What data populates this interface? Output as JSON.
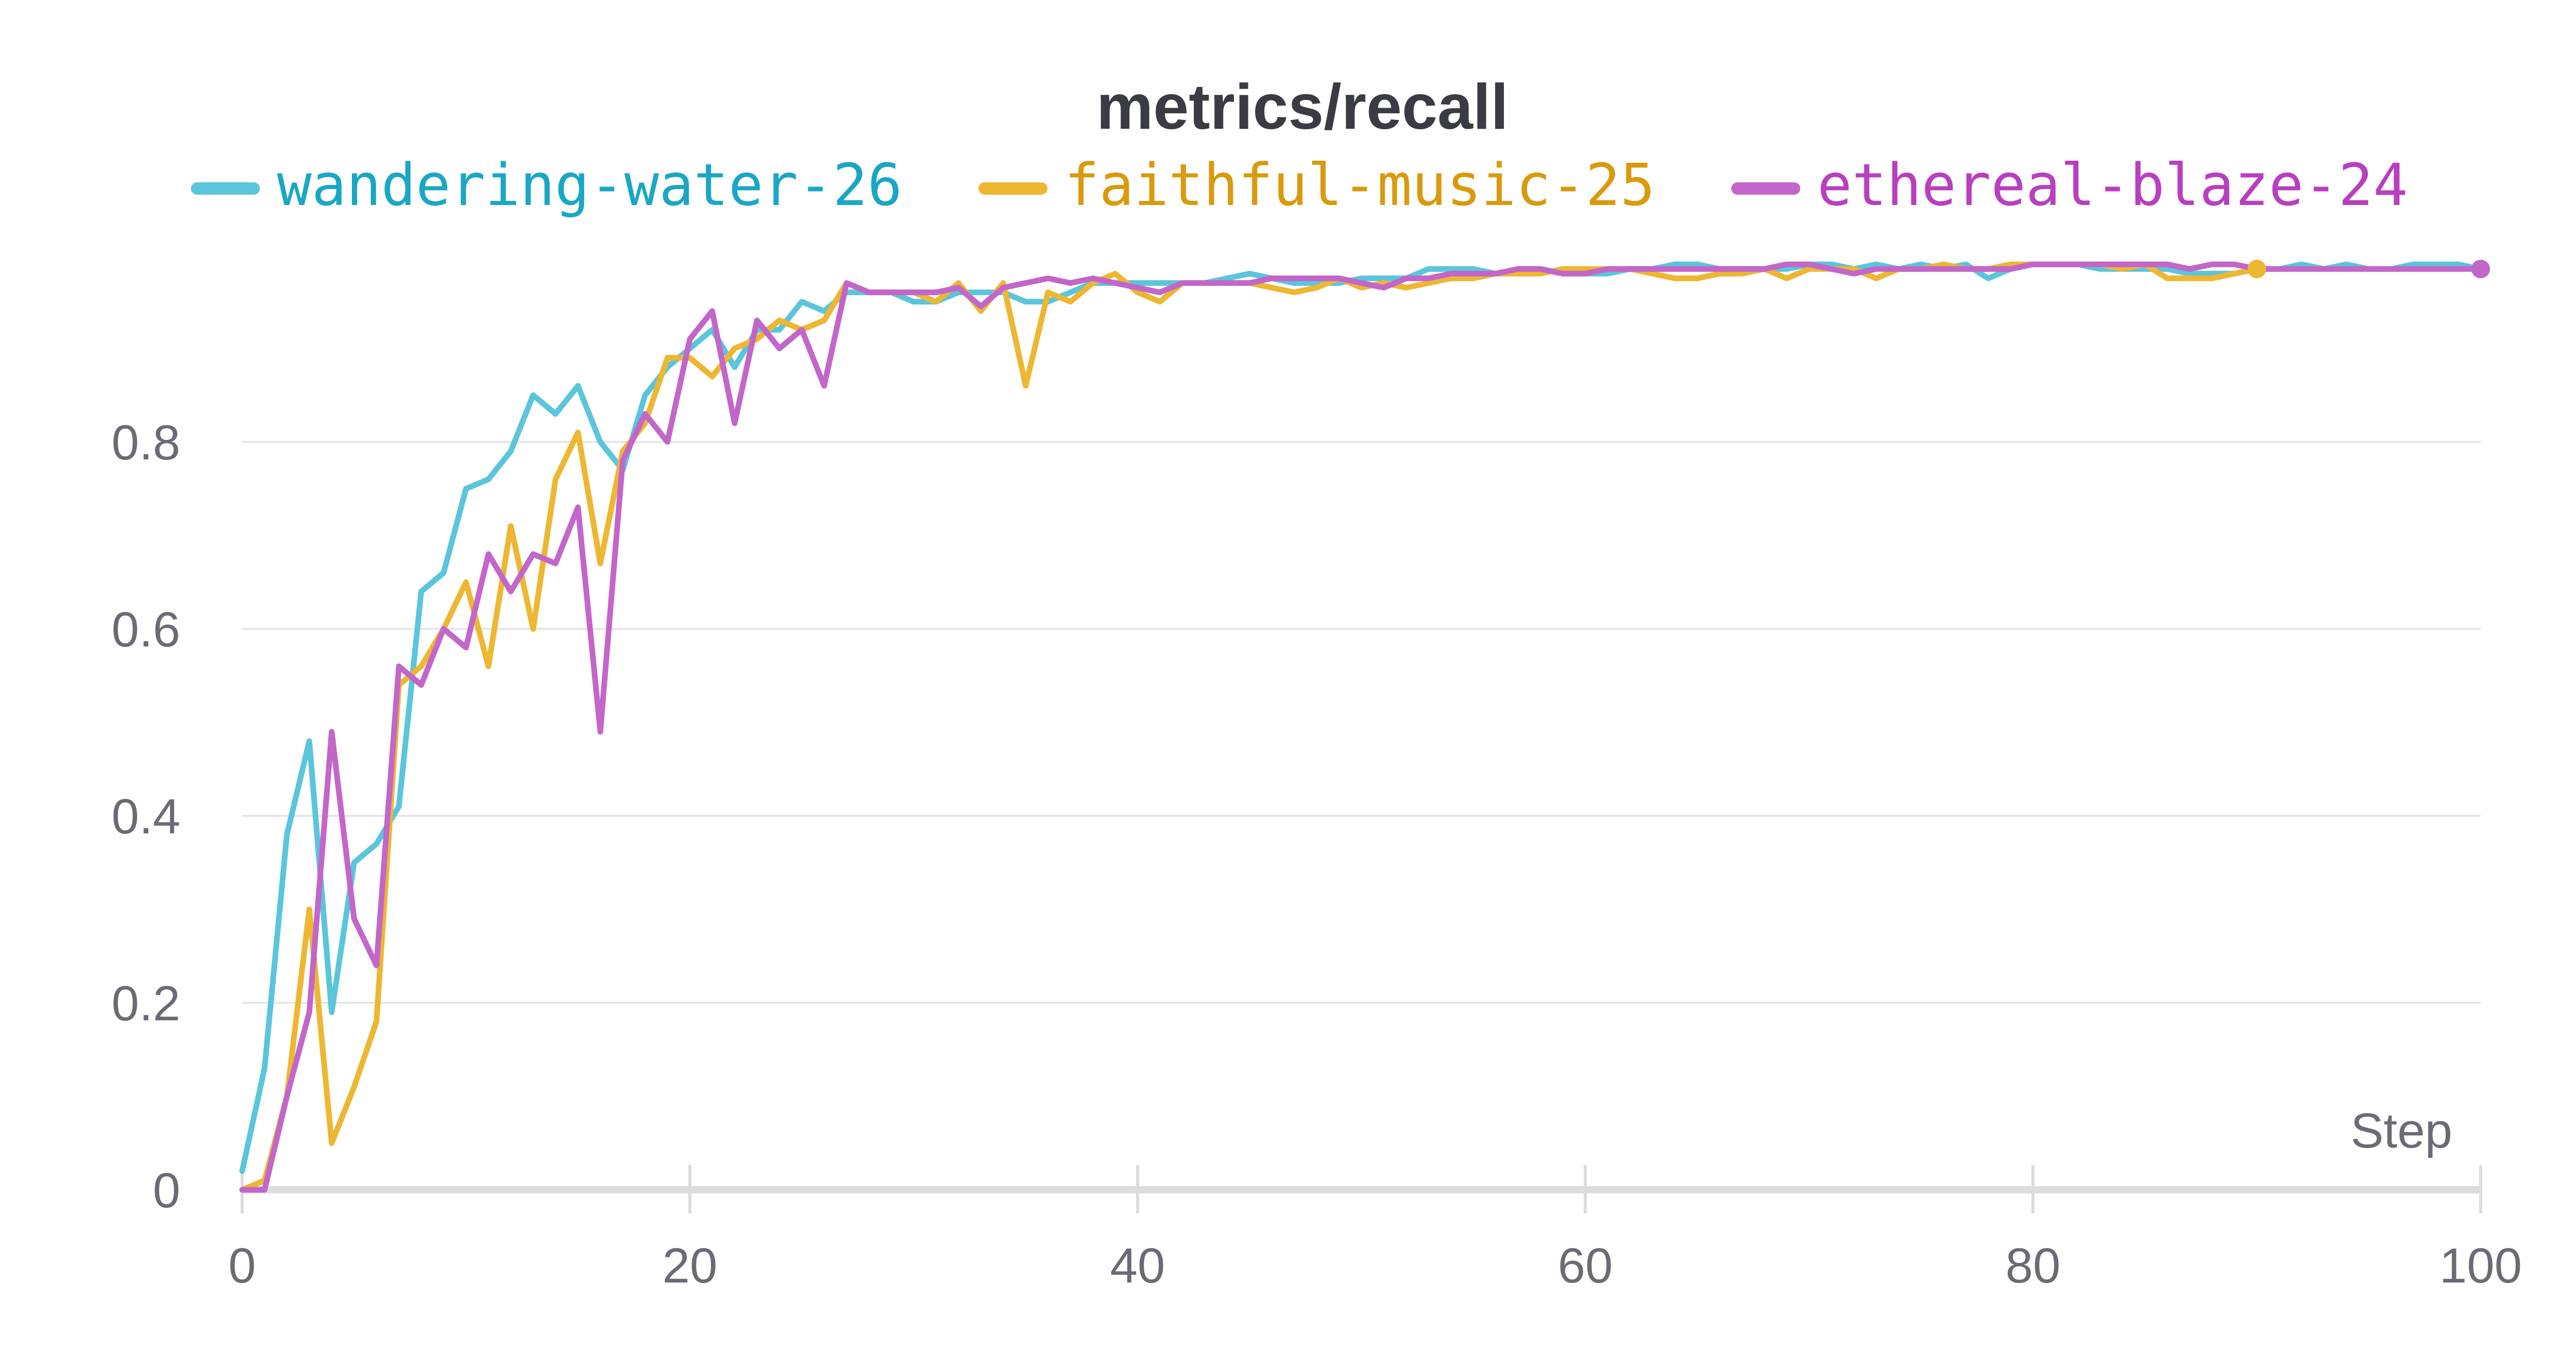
{
  "chart_data": {
    "type": "line",
    "title": "metrics/recall",
    "xlabel": "Step",
    "ylabel": "",
    "xlim": [
      0,
      100
    ],
    "ylim": [
      0,
      1.0
    ],
    "x_ticks": [
      0,
      20,
      40,
      60,
      80,
      100
    ],
    "y_ticks": [
      0,
      0.2,
      0.4,
      0.6,
      0.8
    ],
    "x_tick_labels": [
      "0",
      "20",
      "40",
      "60",
      "80",
      "100"
    ],
    "y_tick_labels": [
      "0",
      "0.2",
      "0.4",
      "0.6",
      "0.8"
    ],
    "grid": "horizontal",
    "legend_position": "top",
    "series": [
      {
        "name": "wandering-water-26",
        "color": "#5bc5db",
        "text_color": "#1aa7c4",
        "x": [
          0,
          1,
          2,
          3,
          4,
          5,
          6,
          7,
          8,
          9,
          10,
          11,
          12,
          13,
          14,
          15,
          16,
          17,
          18,
          19,
          20,
          21,
          22,
          23,
          24,
          25,
          26,
          27,
          28,
          29,
          30,
          31,
          32,
          33,
          34,
          35,
          36,
          37,
          38,
          39,
          40,
          41,
          42,
          43,
          44,
          45,
          46,
          47,
          48,
          49,
          50,
          51,
          52,
          53,
          54,
          55,
          56,
          57,
          58,
          59,
          60,
          61,
          62,
          63,
          64,
          65,
          66,
          67,
          68,
          69,
          70,
          71,
          72,
          73,
          74,
          75,
          76,
          77,
          78,
          79,
          80,
          81,
          82,
          83,
          84,
          85,
          86,
          87,
          88,
          89,
          90,
          91,
          92,
          93,
          94,
          95,
          96,
          97,
          98,
          99,
          100
        ],
        "y": [
          0.02,
          0.13,
          0.38,
          0.48,
          0.19,
          0.35,
          0.37,
          0.41,
          0.64,
          0.66,
          0.75,
          0.76,
          0.79,
          0.85,
          0.83,
          0.86,
          0.8,
          0.77,
          0.85,
          0.88,
          0.9,
          0.92,
          0.88,
          0.92,
          0.92,
          0.95,
          0.94,
          0.96,
          0.96,
          0.96,
          0.95,
          0.95,
          0.96,
          0.96,
          0.96,
          0.95,
          0.95,
          0.96,
          0.97,
          0.97,
          0.97,
          0.97,
          0.97,
          0.97,
          0.975,
          0.98,
          0.975,
          0.97,
          0.97,
          0.97,
          0.975,
          0.975,
          0.975,
          0.985,
          0.985,
          0.985,
          0.98,
          0.985,
          0.985,
          0.98,
          0.98,
          0.98,
          0.985,
          0.985,
          0.99,
          0.99,
          0.985,
          0.985,
          0.985,
          0.985,
          0.99,
          0.99,
          0.985,
          0.99,
          0.985,
          0.99,
          0.985,
          0.99,
          0.975,
          0.985,
          0.99,
          0.99,
          0.99,
          0.985,
          0.985,
          0.985,
          0.985,
          0.98,
          0.98,
          0.98,
          0.985,
          0.985,
          0.99,
          0.985,
          0.99,
          0.985,
          0.985,
          0.99,
          0.99,
          0.99,
          0.985
        ]
      },
      {
        "name": "faithful-music-25",
        "color": "#edb732",
        "text_color": "#d99a0d",
        "x": [
          0,
          1,
          2,
          3,
          4,
          5,
          6,
          7,
          8,
          9,
          10,
          11,
          12,
          13,
          14,
          15,
          16,
          17,
          18,
          19,
          20,
          21,
          22,
          23,
          24,
          25,
          26,
          27,
          28,
          29,
          30,
          31,
          32,
          33,
          34,
          35,
          36,
          37,
          38,
          39,
          40,
          41,
          42,
          43,
          44,
          45,
          46,
          47,
          48,
          49,
          50,
          51,
          52,
          53,
          54,
          55,
          56,
          57,
          58,
          59,
          60,
          61,
          62,
          63,
          64,
          65,
          66,
          67,
          68,
          69,
          70,
          71,
          72,
          73,
          74,
          75,
          76,
          77,
          78,
          79,
          80,
          81,
          82,
          83,
          84,
          85,
          86,
          87,
          88,
          89,
          90
        ],
        "y": [
          0.0,
          0.01,
          0.1,
          0.3,
          0.05,
          0.11,
          0.18,
          0.54,
          0.56,
          0.6,
          0.65,
          0.56,
          0.71,
          0.6,
          0.76,
          0.81,
          0.67,
          0.79,
          0.82,
          0.89,
          0.89,
          0.87,
          0.9,
          0.91,
          0.93,
          0.92,
          0.93,
          0.97,
          0.96,
          0.96,
          0.96,
          0.95,
          0.97,
          0.94,
          0.97,
          0.86,
          0.96,
          0.95,
          0.97,
          0.98,
          0.96,
          0.95,
          0.97,
          0.97,
          0.97,
          0.97,
          0.965,
          0.96,
          0.965,
          0.975,
          0.965,
          0.97,
          0.965,
          0.97,
          0.975,
          0.975,
          0.98,
          0.98,
          0.98,
          0.985,
          0.985,
          0.985,
          0.985,
          0.98,
          0.975,
          0.975,
          0.98,
          0.98,
          0.985,
          0.975,
          0.985,
          0.985,
          0.985,
          0.975,
          0.985,
          0.985,
          0.99,
          0.985,
          0.985,
          0.99,
          0.99,
          0.99,
          0.99,
          0.99,
          0.985,
          0.99,
          0.975,
          0.975,
          0.975,
          0.98,
          0.985
        ]
      },
      {
        "name": "ethereal-blaze-24",
        "color": "#c366c9",
        "text_color": "#b83fbf",
        "x": [
          0,
          1,
          2,
          3,
          4,
          5,
          6,
          7,
          8,
          9,
          10,
          11,
          12,
          13,
          14,
          15,
          16,
          17,
          18,
          19,
          20,
          21,
          22,
          23,
          24,
          25,
          26,
          27,
          28,
          29,
          30,
          31,
          32,
          33,
          34,
          35,
          36,
          37,
          38,
          39,
          40,
          41,
          42,
          43,
          44,
          45,
          46,
          47,
          48,
          49,
          50,
          51,
          52,
          53,
          54,
          55,
          56,
          57,
          58,
          59,
          60,
          61,
          62,
          63,
          64,
          65,
          66,
          67,
          68,
          69,
          70,
          71,
          72,
          73,
          74,
          75,
          76,
          77,
          78,
          79,
          80,
          81,
          82,
          83,
          84,
          85,
          86,
          87,
          88,
          89,
          90,
          91,
          92,
          93,
          94,
          95,
          96,
          97,
          98,
          99,
          100
        ],
        "y": [
          0.0,
          0.0,
          0.1,
          0.19,
          0.49,
          0.29,
          0.24,
          0.56,
          0.54,
          0.6,
          0.58,
          0.68,
          0.64,
          0.68,
          0.67,
          0.73,
          0.49,
          0.78,
          0.83,
          0.8,
          0.91,
          0.94,
          0.82,
          0.93,
          0.9,
          0.92,
          0.86,
          0.97,
          0.96,
          0.96,
          0.96,
          0.96,
          0.965,
          0.945,
          0.965,
          0.97,
          0.975,
          0.97,
          0.975,
          0.97,
          0.965,
          0.96,
          0.97,
          0.97,
          0.97,
          0.97,
          0.975,
          0.975,
          0.975,
          0.975,
          0.97,
          0.965,
          0.975,
          0.975,
          0.98,
          0.98,
          0.98,
          0.985,
          0.985,
          0.98,
          0.98,
          0.985,
          0.985,
          0.985,
          0.985,
          0.985,
          0.985,
          0.985,
          0.985,
          0.99,
          0.99,
          0.985,
          0.98,
          0.985,
          0.985,
          0.985,
          0.985,
          0.985,
          0.985,
          0.985,
          0.99,
          0.99,
          0.99,
          0.99,
          0.99,
          0.99,
          0.99,
          0.985,
          0.99,
          0.99,
          0.985,
          0.985,
          0.985,
          0.985,
          0.985,
          0.985,
          0.985,
          0.985,
          0.985,
          0.985,
          0.985
        ]
      }
    ]
  }
}
